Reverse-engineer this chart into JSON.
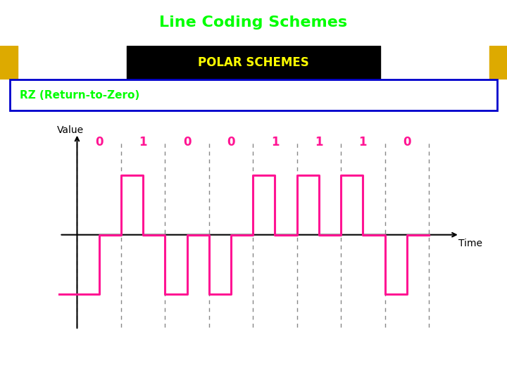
{
  "title": "Line Coding Schemes",
  "subtitle": "POLAR SCHEMES",
  "subtitle2": "RZ (Return-to-Zero)",
  "title_bg": "#000000",
  "title_color": "#00ff00",
  "subtitle_bg": "#000000",
  "subtitle_color": "#ffff00",
  "subtitle2_bg": "#00008b",
  "subtitle2_color": "#00ff00",
  "red_bar_color": "#dd2200",
  "yellow_bar_color": "#ddaa00",
  "bits": [
    0,
    1,
    0,
    0,
    1,
    1,
    1,
    0
  ],
  "signal_color": "#ff1493",
  "signal_linewidth": 2.2,
  "axis_color": "#000000",
  "dashed_color": "#888888",
  "bit_label_color": "#ff1493",
  "value_label": "Value",
  "time_label": "Time",
  "plot_bg": "#ffffff",
  "outer_bg": "#ffffff",
  "border_color": "#0000cc"
}
